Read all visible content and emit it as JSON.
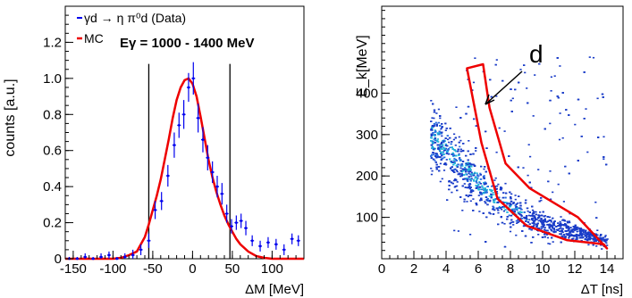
{
  "chart_data": [
    {
      "type": "line",
      "xlabel": "ΔM [MeV]",
      "ylabel": "counts [a.u.]",
      "xlim": [
        -160,
        140
      ],
      "ylim": [
        0,
        1.4
      ],
      "x_ticks": [
        -150,
        -100,
        -50,
        0,
        50,
        100
      ],
      "y_ticks": [
        0,
        0.2,
        0.4,
        0.6,
        0.8,
        1.0,
        1.2
      ],
      "x_tick_labels": [
        "-150",
        "-100",
        "-50",
        "0",
        "50",
        "100"
      ],
      "y_tick_labels": [
        "0",
        "0.2",
        "0.4",
        "0.6",
        "0.8",
        "1.0",
        "1.2"
      ],
      "annotation": "Eγ = 1000 - 1400 MeV",
      "legend": {
        "placement": "top-left",
        "entries": [
          {
            "label": "γd → η π⁰d (Data)",
            "color": "#0000ee",
            "style": "points"
          },
          {
            "label": "MC",
            "color": "#ee0000",
            "style": "line"
          }
        ]
      },
      "cut_lines": [
        -55,
        47
      ],
      "series": [
        {
          "name": "γd → η π⁰d (Data)",
          "x": [
            -155,
            -145,
            -135,
            -125,
            -115,
            -105,
            -95,
            -85,
            -75,
            -65,
            -55,
            -47,
            -39,
            -31,
            -23,
            -17,
            -11,
            -5,
            1,
            7,
            13,
            19,
            25,
            31,
            37,
            43,
            49,
            55,
            61,
            67,
            75,
            85,
            95,
            105,
            115,
            125,
            133
          ],
          "y": [
            0.0,
            0.0,
            0.01,
            0.0,
            0.01,
            0.02,
            0.0,
            0.01,
            0.02,
            0.05,
            0.1,
            0.27,
            0.32,
            0.46,
            0.63,
            0.74,
            0.8,
            0.95,
            1.0,
            0.78,
            0.66,
            0.56,
            0.48,
            0.4,
            0.36,
            0.25,
            0.18,
            0.2,
            0.21,
            0.17,
            0.1,
            0.07,
            0.09,
            0.08,
            0.05,
            0.11,
            0.1
          ],
          "err": [
            0.01,
            0.01,
            0.02,
            0.01,
            0.02,
            0.02,
            0.01,
            0.02,
            0.03,
            0.03,
            0.04,
            0.05,
            0.05,
            0.06,
            0.07,
            0.07,
            0.08,
            0.08,
            0.09,
            0.08,
            0.07,
            0.07,
            0.06,
            0.06,
            0.06,
            0.05,
            0.04,
            0.04,
            0.04,
            0.04,
            0.03,
            0.03,
            0.03,
            0.03,
            0.03,
            0.03,
            0.03
          ]
        },
        {
          "name": "MC",
          "x": [
            -160,
            -140,
            -120,
            -100,
            -90,
            -80,
            -70,
            -60,
            -55,
            -50,
            -45,
            -40,
            -35,
            -30,
            -25,
            -20,
            -15,
            -10,
            -5,
            0,
            5,
            10,
            15,
            20,
            25,
            30,
            35,
            40,
            45,
            50,
            55,
            60,
            70,
            80,
            90,
            100,
            110,
            120,
            140
          ],
          "y": [
            0,
            0,
            0,
            0,
            0.005,
            0.02,
            0.04,
            0.12,
            0.19,
            0.27,
            0.35,
            0.44,
            0.55,
            0.66,
            0.78,
            0.88,
            0.95,
            0.99,
            1.0,
            0.97,
            0.9,
            0.79,
            0.67,
            0.55,
            0.45,
            0.37,
            0.3,
            0.24,
            0.19,
            0.15,
            0.11,
            0.08,
            0.04,
            0.015,
            0.005,
            0,
            0,
            0,
            0
          ]
        }
      ]
    },
    {
      "type": "heatmap",
      "xlabel": "ΔT [ns]",
      "ylabel": "E_k[MeV]",
      "xlim": [
        0,
        15
      ],
      "ylim": [
        0,
        610
      ],
      "x_ticks": [
        0,
        2,
        4,
        6,
        8,
        10,
        12,
        14
      ],
      "y_ticks": [
        100,
        200,
        300,
        400
      ],
      "x_tick_labels": [
        "0",
        "2",
        "4",
        "6",
        "8",
        "10",
        "12",
        "14"
      ],
      "y_tick_labels": [
        "100",
        "200",
        "300",
        "400"
      ],
      "annotation": "d",
      "band_trend": {
        "x": [
          3,
          4,
          5,
          6,
          7,
          8,
          9,
          10,
          12,
          14
        ],
        "y": [
          300,
          260,
          225,
          185,
          145,
          120,
          100,
          85,
          65,
          45
        ]
      },
      "cut_region": {
        "x": [
          5.3,
          6.3,
          6.7,
          7.7,
          9.2,
          12.2,
          14.0,
          13.8,
          11.5,
          9.0,
          7.2,
          6.2,
          5.3
        ],
        "y": [
          460,
          470,
          365,
          230,
          170,
          100,
          25,
          35,
          45,
          80,
          145,
          280,
          460
        ]
      }
    }
  ]
}
